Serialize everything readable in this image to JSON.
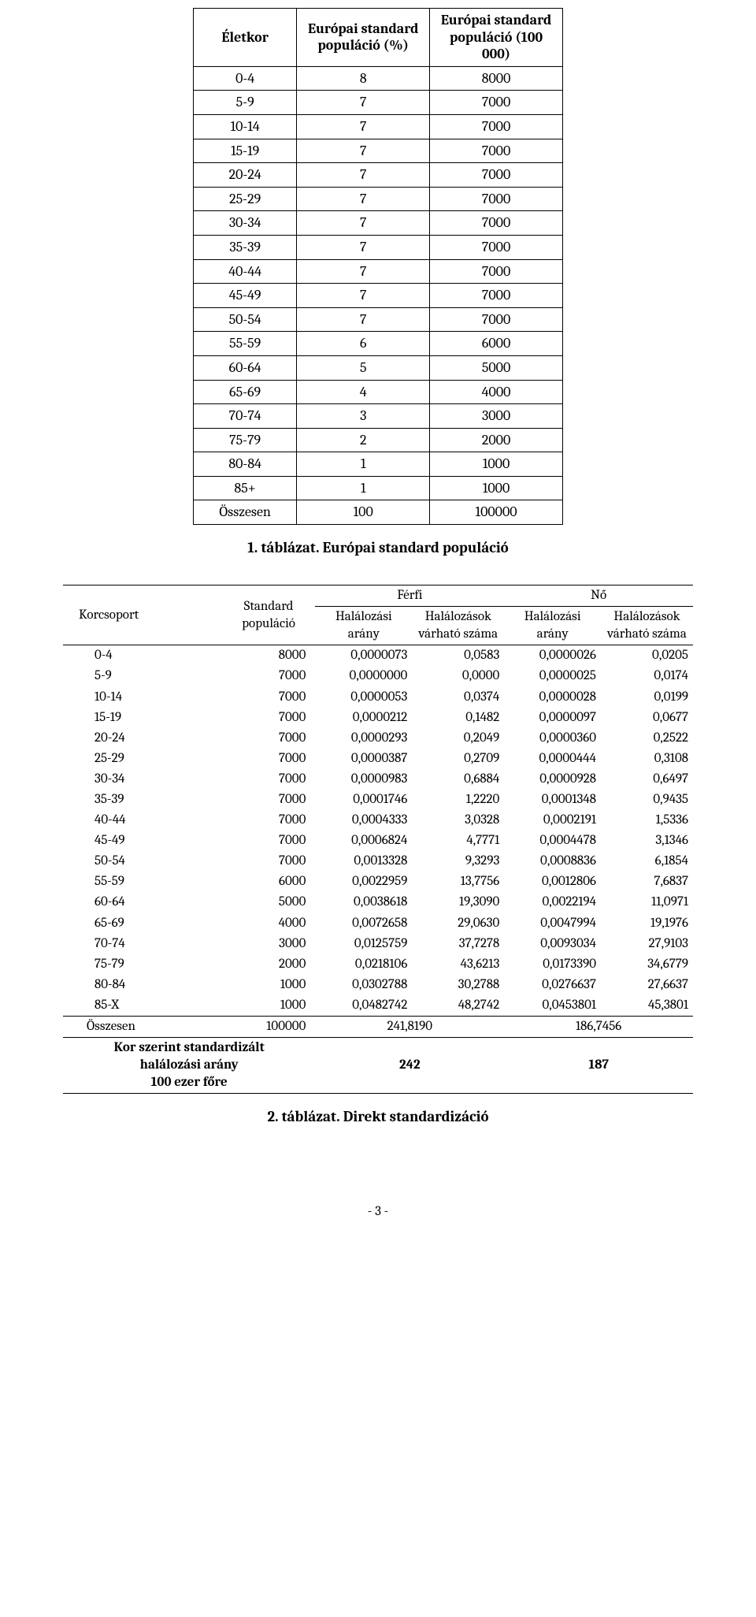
{
  "table1": {
    "headers": {
      "age": "Életkor",
      "pct": "Európai standard populáció (%)",
      "pop": "Európai standard populáció (100 000)"
    },
    "rows": [
      {
        "age": "0-4",
        "pct": "8",
        "pop": "8000"
      },
      {
        "age": "5-9",
        "pct": "7",
        "pop": "7000"
      },
      {
        "age": "10-14",
        "pct": "7",
        "pop": "7000"
      },
      {
        "age": "15-19",
        "pct": "7",
        "pop": "7000"
      },
      {
        "age": "20-24",
        "pct": "7",
        "pop": "7000"
      },
      {
        "age": "25-29",
        "pct": "7",
        "pop": "7000"
      },
      {
        "age": "30-34",
        "pct": "7",
        "pop": "7000"
      },
      {
        "age": "35-39",
        "pct": "7",
        "pop": "7000"
      },
      {
        "age": "40-44",
        "pct": "7",
        "pop": "7000"
      },
      {
        "age": "45-49",
        "pct": "7",
        "pop": "7000"
      },
      {
        "age": "50-54",
        "pct": "7",
        "pop": "7000"
      },
      {
        "age": "55-59",
        "pct": "6",
        "pop": "6000"
      },
      {
        "age": "60-64",
        "pct": "5",
        "pop": "5000"
      },
      {
        "age": "65-69",
        "pct": "4",
        "pop": "4000"
      },
      {
        "age": "70-74",
        "pct": "3",
        "pop": "3000"
      },
      {
        "age": "75-79",
        "pct": "2",
        "pop": "2000"
      },
      {
        "age": "80-84",
        "pct": "1",
        "pop": "1000"
      },
      {
        "age": "85+",
        "pct": "1",
        "pop": "1000"
      },
      {
        "age": "Összesen",
        "pct": "100",
        "pop": "100000"
      }
    ]
  },
  "caption1": "1. táblázat.  Európai standard populáció",
  "table2": {
    "headers": {
      "kor": "Korcsoport",
      "std": "Standard populáció",
      "ferfi": "Férfi",
      "no": "Nő",
      "h_arany": "Halálozási arány",
      "h_varhato": "Halálozások várható száma"
    },
    "rows": [
      {
        "kor": "0-4",
        "std": "8000",
        "fa": "0,0000073",
        "fv": "0,0583",
        "na": "0,0000026",
        "nv": "0,0205"
      },
      {
        "kor": "5-9",
        "std": "7000",
        "fa": "0,0000000",
        "fv": "0,0000",
        "na": "0,0000025",
        "nv": "0,0174"
      },
      {
        "kor": "10-14",
        "std": "7000",
        "fa": "0,0000053",
        "fv": "0,0374",
        "na": "0,0000028",
        "nv": "0,0199"
      },
      {
        "kor": "15-19",
        "std": "7000",
        "fa": "0,0000212",
        "fv": "0,1482",
        "na": "0,0000097",
        "nv": "0,0677"
      },
      {
        "kor": "20-24",
        "std": "7000",
        "fa": "0,0000293",
        "fv": "0,2049",
        "na": "0,0000360",
        "nv": "0,2522"
      },
      {
        "kor": "25-29",
        "std": "7000",
        "fa": "0,0000387",
        "fv": "0,2709",
        "na": "0,0000444",
        "nv": "0,3108"
      },
      {
        "kor": "30-34",
        "std": "7000",
        "fa": "0,0000983",
        "fv": "0,6884",
        "na": "0,0000928",
        "nv": "0,6497"
      },
      {
        "kor": "35-39",
        "std": "7000",
        "fa": "0,0001746",
        "fv": "1,2220",
        "na": "0,0001348",
        "nv": "0,9435"
      },
      {
        "kor": "40-44",
        "std": "7000",
        "fa": "0,0004333",
        "fv": "3,0328",
        "na": "0,0002191",
        "nv": "1,5336"
      },
      {
        "kor": "45-49",
        "std": "7000",
        "fa": "0,0006824",
        "fv": "4,7771",
        "na": "0,0004478",
        "nv": "3,1346"
      },
      {
        "kor": "50-54",
        "std": "7000",
        "fa": "0,0013328",
        "fv": "9,3293",
        "na": "0,0008836",
        "nv": "6,1854"
      },
      {
        "kor": "55-59",
        "std": "6000",
        "fa": "0,0022959",
        "fv": "13,7756",
        "na": "0,0012806",
        "nv": "7,6837"
      },
      {
        "kor": "60-64",
        "std": "5000",
        "fa": "0,0038618",
        "fv": "19,3090",
        "na": "0,0022194",
        "nv": "11,0971"
      },
      {
        "kor": "65-69",
        "std": "4000",
        "fa": "0,0072658",
        "fv": "29,0630",
        "na": "0,0047994",
        "nv": "19,1976"
      },
      {
        "kor": "70-74",
        "std": "3000",
        "fa": "0,0125759",
        "fv": "37,7278",
        "na": "0,0093034",
        "nv": "27,9103"
      },
      {
        "kor": "75-79",
        "std": "2000",
        "fa": "0,0218106",
        "fv": "43,6213",
        "na": "0,0173390",
        "nv": "34,6779"
      },
      {
        "kor": "80-84",
        "std": "1000",
        "fa": "0,0302788",
        "fv": "30,2788",
        "na": "0,0276637",
        "nv": "27,6637"
      },
      {
        "kor": "85-X",
        "std": "1000",
        "fa": "0,0482742",
        "fv": "48,2742",
        "na": "0,0453801",
        "nv": "45,3801"
      }
    ],
    "totals": {
      "kor": "Összesen",
      "std": "100000",
      "fv": "241,8190",
      "nv": "186,7456"
    },
    "summary": {
      "label_l1": "Kor szerint standardizált",
      "label_l2": "halálozási arány",
      "label_l3": "100 ezer főre",
      "ferfi": "242",
      "no": "187"
    }
  },
  "caption2": "2. táblázat.  Direkt standardizáció",
  "page_number": "- 3 -",
  "colors": {
    "text": "#000000",
    "background": "#ffffff",
    "border": "#000000"
  }
}
